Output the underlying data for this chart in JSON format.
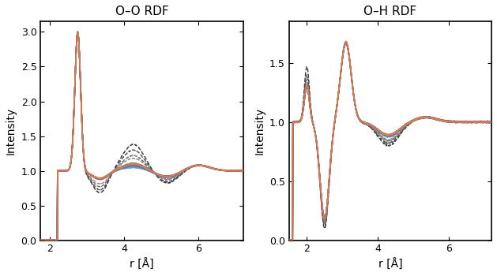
{
  "title_oo": "O–O RDF",
  "title_oh": "O–H RDF",
  "xlabel": "r [Å]",
  "ylabel": "Intensity",
  "xlim_oo": [
    1.75,
    7.2
  ],
  "xlim_oh": [
    1.5,
    7.2
  ],
  "ylim_oo": [
    0.0,
    3.15
  ],
  "ylim_oh": [
    0.0,
    1.85
  ],
  "xticks_oo": [
    2,
    4,
    6
  ],
  "xticks_oh": [
    2,
    4,
    6
  ],
  "yticks_oo": [
    0.0,
    0.5,
    1.0,
    1.5,
    2.0,
    2.5,
    3.0
  ],
  "yticks_oh": [
    0.0,
    0.5,
    1.0,
    1.5
  ],
  "bg_color": "#ffffff",
  "blue_band_color": "#5599cc",
  "blue_band_alpha": 0.35,
  "colors_solid_oo": [
    "#4488cc",
    "#4488cc",
    "#4488cc",
    "#22aa44",
    "#22aa44",
    "#ee4444",
    "#ee4444",
    "#aa44cc",
    "#dd8833"
  ],
  "colors_solid_oh": [
    "#4488cc",
    "#4488cc",
    "#4488cc",
    "#22aa44",
    "#22aa44",
    "#ee4444",
    "#ee4444",
    "#aa44cc",
    "#dd8833"
  ],
  "colors_dashed_oo": [
    "#222222",
    "#444444",
    "#666666",
    "#888888"
  ],
  "colors_dashed_oh": [
    "#222222",
    "#444444",
    "#666666",
    "#888888"
  ],
  "lw_solid": 1.1,
  "lw_dashed": 1.0
}
